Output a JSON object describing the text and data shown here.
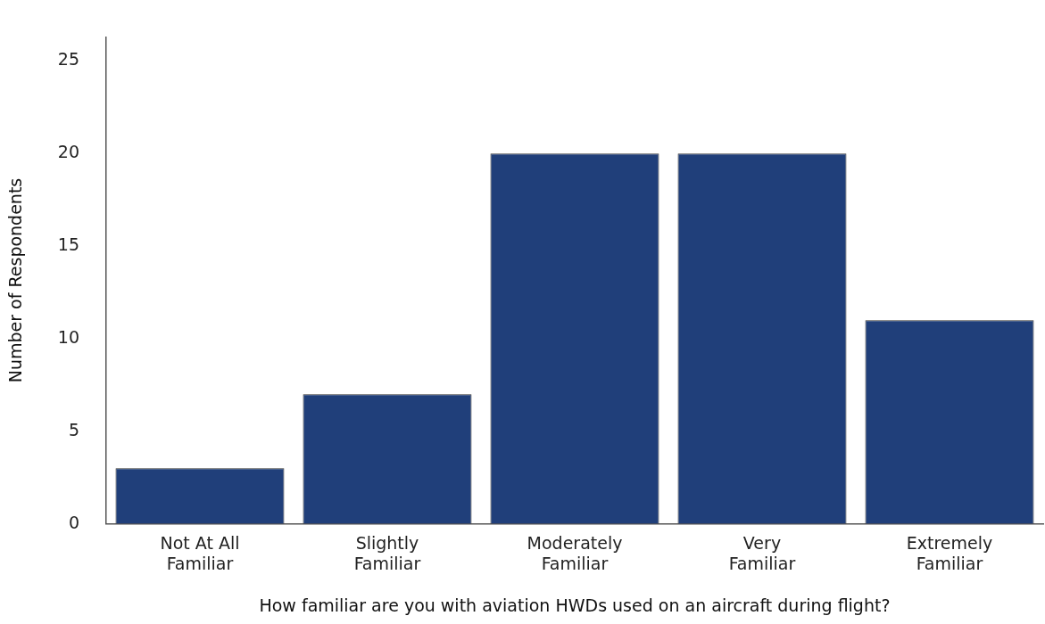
{
  "chart_data": {
    "type": "bar",
    "xlabel": "How familiar are you with aviation HWDs used on an aircraft during flight?",
    "ylabel": "Number of Respondents",
    "categories": [
      "Not At All Familiar",
      "Slightly Familiar",
      "Moderately Familiar",
      "Very Familiar",
      "Extremely Familiar"
    ],
    "values": [
      3,
      7,
      20,
      20,
      11
    ],
    "color": "#203f7a",
    "ylim": [
      0,
      26.3
    ],
    "yticks": [
      0,
      5,
      10,
      15,
      20,
      25
    ],
    "grid": false,
    "legend": false
  }
}
